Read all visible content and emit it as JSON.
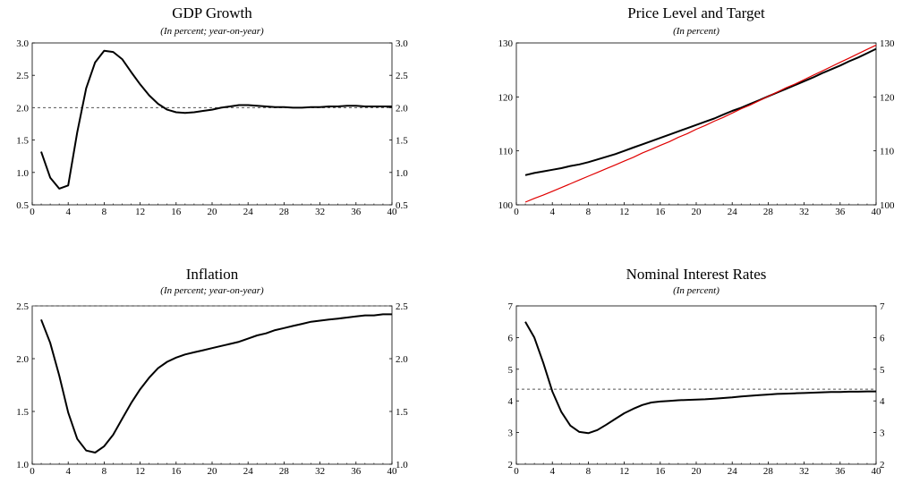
{
  "chart_data": [
    {
      "type": "line",
      "title": "GDP Growth",
      "subtitle": "(In percent; year-on-year)",
      "xlim": [
        0,
        40
      ],
      "xticks": [
        0,
        4,
        8,
        12,
        16,
        20,
        24,
        28,
        32,
        36,
        40
      ],
      "ylim": [
        0.5,
        3.0
      ],
      "yticks": [
        "0.5",
        "1.0",
        "1.5",
        "2.0",
        "2.5",
        "3.0"
      ],
      "right_axis": true,
      "reference_line": {
        "y": 2.0,
        "style": "dashed",
        "color": "#555555"
      },
      "series": [
        {
          "color": "#000000",
          "x": [
            1,
            2,
            3,
            4,
            5,
            6,
            7,
            8,
            9,
            10,
            11,
            12,
            13,
            14,
            15,
            16,
            17,
            18,
            19,
            20,
            21,
            22,
            23,
            24,
            25,
            26,
            27,
            28,
            29,
            30,
            31,
            32,
            33,
            34,
            35,
            36,
            37,
            38,
            39,
            40
          ],
          "values": [
            1.32,
            0.92,
            0.75,
            0.8,
            1.62,
            2.3,
            2.7,
            2.88,
            2.86,
            2.75,
            2.55,
            2.36,
            2.19,
            2.06,
            1.97,
            1.93,
            1.92,
            1.93,
            1.95,
            1.97,
            2.0,
            2.02,
            2.04,
            2.04,
            2.03,
            2.02,
            2.01,
            2.01,
            2.0,
            2.0,
            2.01,
            2.01,
            2.02,
            2.02,
            2.03,
            2.03,
            2.02,
            2.02,
            2.02,
            2.02
          ]
        }
      ]
    },
    {
      "type": "line",
      "title": "Price Level and Target",
      "subtitle": "(In percent)",
      "xlim": [
        0,
        40
      ],
      "xticks": [
        0,
        4,
        8,
        12,
        16,
        20,
        24,
        28,
        32,
        36,
        40
      ],
      "ylim": [
        100,
        130
      ],
      "yticks": [
        "100",
        "110",
        "120",
        "130"
      ],
      "right_axis": true,
      "series": [
        {
          "color": "#000000",
          "x": [
            1,
            2,
            3,
            4,
            5,
            6,
            7,
            8,
            9,
            10,
            11,
            12,
            13,
            14,
            15,
            16,
            17,
            18,
            19,
            20,
            21,
            22,
            23,
            24,
            25,
            26,
            27,
            28,
            29,
            30,
            31,
            32,
            33,
            34,
            35,
            36,
            37,
            38,
            39,
            40
          ],
          "values": [
            105.5,
            105.9,
            106.2,
            106.5,
            106.8,
            107.2,
            107.5,
            107.9,
            108.4,
            108.9,
            109.4,
            110.0,
            110.6,
            111.2,
            111.8,
            112.4,
            113.0,
            113.6,
            114.2,
            114.8,
            115.4,
            116.0,
            116.7,
            117.4,
            118.0,
            118.7,
            119.4,
            120.1,
            120.8,
            121.5,
            122.2,
            122.9,
            123.6,
            124.4,
            125.1,
            125.8,
            126.6,
            127.3,
            128.1,
            128.9
          ]
        },
        {
          "color": "#e00000",
          "x": [
            1,
            2,
            3,
            4,
            5,
            6,
            7,
            8,
            9,
            10,
            11,
            12,
            13,
            14,
            15,
            16,
            17,
            18,
            19,
            20,
            21,
            22,
            23,
            24,
            25,
            26,
            27,
            28,
            29,
            30,
            31,
            32,
            33,
            34,
            35,
            36,
            37,
            38,
            39,
            40
          ],
          "values": [
            100.5,
            101.2,
            101.8,
            102.5,
            103.2,
            103.9,
            104.6,
            105.3,
            106.0,
            106.7,
            107.4,
            108.1,
            108.8,
            109.6,
            110.3,
            111.0,
            111.7,
            112.5,
            113.2,
            114.0,
            114.7,
            115.5,
            116.2,
            117.0,
            117.8,
            118.5,
            119.3,
            120.1,
            120.9,
            121.7,
            122.4,
            123.2,
            124.0,
            124.8,
            125.6,
            126.4,
            127.2,
            128.0,
            128.8,
            129.6
          ]
        }
      ]
    },
    {
      "type": "line",
      "title": "Inflation",
      "subtitle": "(In percent; year-on-year)",
      "xlim": [
        0,
        40
      ],
      "xticks": [
        0,
        4,
        8,
        12,
        16,
        20,
        24,
        28,
        32,
        36,
        40
      ],
      "ylim": [
        1.0,
        2.5
      ],
      "yticks": [
        "1.0",
        "1.5",
        "2.0",
        "2.5"
      ],
      "right_axis": true,
      "reference_line": {
        "y": 2.5,
        "style": "dashed",
        "color": "#555555"
      },
      "series": [
        {
          "color": "#000000",
          "x": [
            1,
            2,
            3,
            4,
            5,
            6,
            7,
            8,
            9,
            10,
            11,
            12,
            13,
            14,
            15,
            16,
            17,
            18,
            19,
            20,
            21,
            22,
            23,
            24,
            25,
            26,
            27,
            28,
            29,
            30,
            31,
            32,
            33,
            34,
            35,
            36,
            37,
            38,
            39,
            40
          ],
          "values": [
            2.37,
            2.15,
            1.84,
            1.49,
            1.24,
            1.13,
            1.11,
            1.17,
            1.28,
            1.43,
            1.58,
            1.71,
            1.82,
            1.91,
            1.97,
            2.01,
            2.04,
            2.06,
            2.08,
            2.1,
            2.12,
            2.14,
            2.16,
            2.19,
            2.22,
            2.24,
            2.27,
            2.29,
            2.31,
            2.33,
            2.35,
            2.36,
            2.37,
            2.38,
            2.39,
            2.4,
            2.41,
            2.41,
            2.42,
            2.42
          ]
        }
      ]
    },
    {
      "type": "line",
      "title": "Nominal Interest Rates",
      "subtitle": "(In percent)",
      "xlim": [
        0,
        40
      ],
      "xticks": [
        0,
        4,
        8,
        12,
        16,
        20,
        24,
        28,
        32,
        36,
        40
      ],
      "ylim": [
        2,
        7
      ],
      "yticks": [
        "2",
        "3",
        "4",
        "5",
        "6",
        "7"
      ],
      "right_axis": true,
      "reference_line": {
        "y": 4.37,
        "style": "dashed",
        "color": "#555555"
      },
      "series": [
        {
          "color": "#000000",
          "x": [
            1,
            2,
            3,
            4,
            5,
            6,
            7,
            8,
            9,
            10,
            11,
            12,
            13,
            14,
            15,
            16,
            17,
            18,
            19,
            20,
            21,
            22,
            23,
            24,
            25,
            26,
            27,
            28,
            29,
            30,
            31,
            32,
            33,
            34,
            35,
            36,
            37,
            38,
            39,
            40
          ],
          "values": [
            6.5,
            6.0,
            5.2,
            4.3,
            3.65,
            3.22,
            3.02,
            2.98,
            3.08,
            3.25,
            3.43,
            3.61,
            3.75,
            3.87,
            3.95,
            3.98,
            4.0,
            4.02,
            4.03,
            4.04,
            4.05,
            4.07,
            4.09,
            4.11,
            4.14,
            4.16,
            4.18,
            4.2,
            4.22,
            4.23,
            4.24,
            4.25,
            4.26,
            4.27,
            4.28,
            4.28,
            4.29,
            4.29,
            4.3,
            4.3
          ]
        }
      ]
    }
  ]
}
